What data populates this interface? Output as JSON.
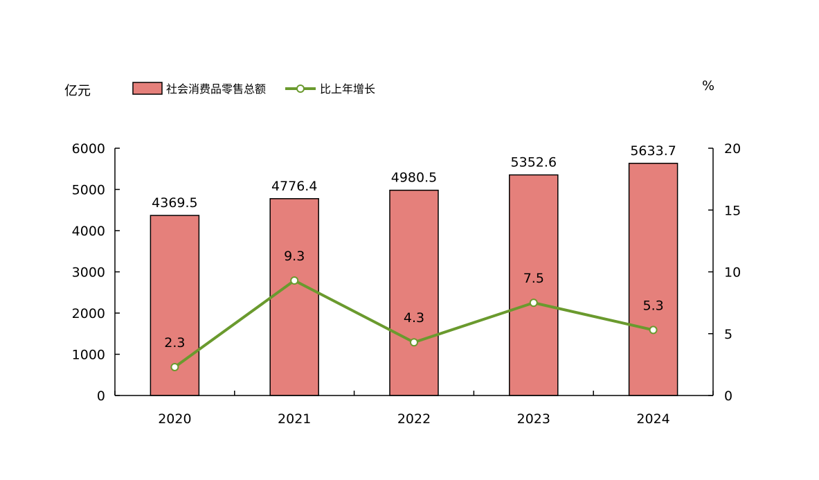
{
  "chart_data": {
    "type": "bar",
    "categories": [
      "2020",
      "2021",
      "2022",
      "2023",
      "2024"
    ],
    "series": [
      {
        "name": "社会消费品零售总额",
        "kind": "bar",
        "axis": "left",
        "color": "#E5807B",
        "values": [
          4369.5,
          4776.4,
          4980.5,
          5352.6,
          5633.7
        ],
        "labels": [
          "4369.5",
          "4776.4",
          "4980.5",
          "5352.6",
          "5633.7"
        ]
      },
      {
        "name": "比上年增长",
        "kind": "line",
        "axis": "right",
        "color": "#6A9A2E",
        "values": [
          2.3,
          9.3,
          4.3,
          7.5,
          5.3
        ],
        "labels": [
          "2.3",
          "9.3",
          "4.3",
          "7.5",
          "5.3"
        ]
      }
    ],
    "y_left": {
      "unit": "亿元",
      "min": 0,
      "max": 6000,
      "ticks": [
        "0",
        "1000",
        "2000",
        "3000",
        "4000",
        "5000",
        "6000"
      ]
    },
    "y_right": {
      "unit": "%",
      "min": 0,
      "max": 20,
      "ticks": [
        "0",
        "5",
        "10",
        "15",
        "20"
      ]
    },
    "legend_position": "top",
    "grid": false
  }
}
